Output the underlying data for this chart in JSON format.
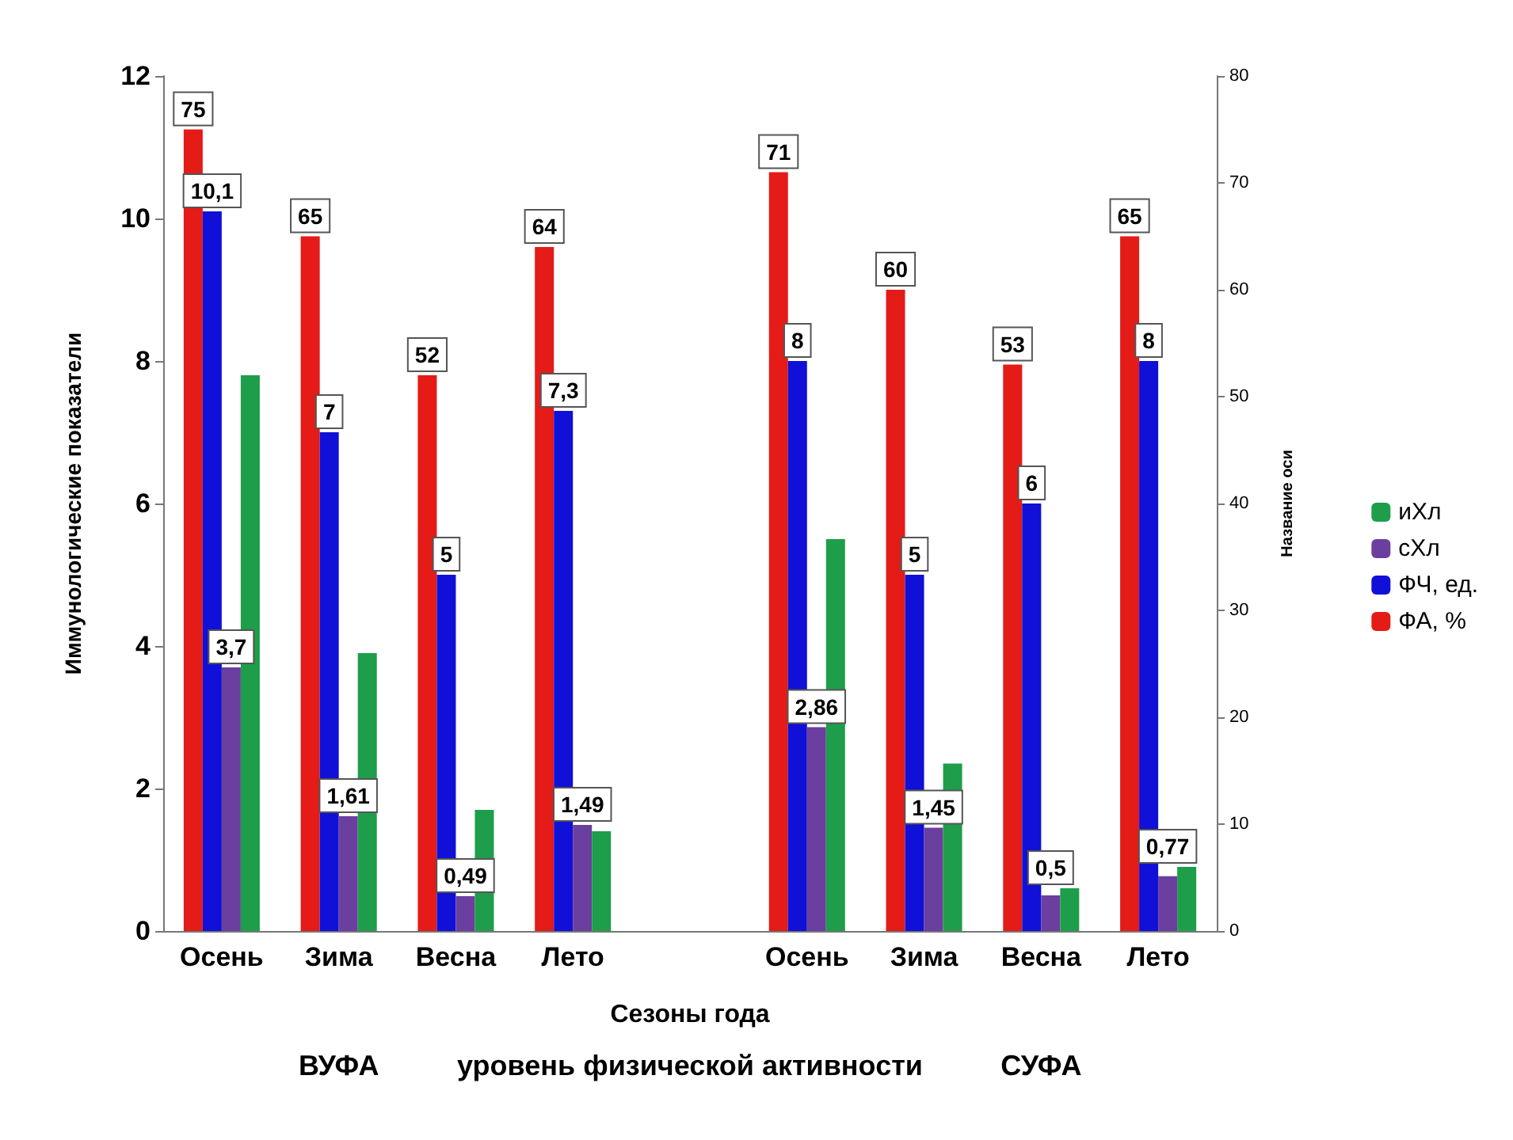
{
  "chart_data": {
    "type": "bar",
    "xlabel": "Сезоны года",
    "ylabel": "Иммунологические показатели",
    "y2label": "Название оси",
    "categories": [
      "Осень",
      "Зима",
      "Весна",
      "Лето",
      null,
      "Осень",
      "Зима",
      "Весна",
      "Лето"
    ],
    "series": [
      {
        "name": "ФА, %",
        "color": "#e41b17",
        "axis": "y2",
        "values": [
          75,
          65,
          52,
          64,
          null,
          71,
          60,
          53,
          65
        ],
        "value_labels": [
          "75",
          "65",
          "52",
          "64",
          null,
          "71",
          "60",
          "53",
          "65"
        ]
      },
      {
        "name": "ФЧ, ед.",
        "color": "#1010d8",
        "values": [
          10.1,
          7,
          5,
          7.3,
          null,
          8,
          5,
          6,
          8
        ],
        "value_labels": [
          "10,1",
          "7",
          "5",
          "7,3",
          null,
          "8",
          "5",
          "6",
          "8"
        ]
      },
      {
        "name": "сХл",
        "color": "#6b3fa0",
        "values": [
          3.7,
          1.61,
          0.49,
          1.49,
          null,
          2.86,
          1.45,
          0.5,
          0.77
        ],
        "value_labels": [
          "3,7",
          "1,61",
          "0,49",
          "1,49",
          null,
          "2,86",
          "1,45",
          "0,5",
          "0,77"
        ]
      },
      {
        "name": "иХл",
        "color": "#1e9e4a",
        "values": [
          7.8,
          3.9,
          1.7,
          1.4,
          null,
          5.5,
          2.35,
          0.6,
          0.9
        ]
      }
    ],
    "ylim": [
      0,
      12
    ],
    "yticks": [
      0,
      2,
      4,
      6,
      8,
      10,
      12
    ],
    "y2lim": [
      0,
      80
    ],
    "y2ticks": [
      0,
      10,
      20,
      30,
      40,
      50,
      60,
      70,
      80
    ],
    "legend": "right",
    "grid": false,
    "annotations": [
      "ВУФА",
      "уровень физической активности",
      "СУФА"
    ]
  }
}
